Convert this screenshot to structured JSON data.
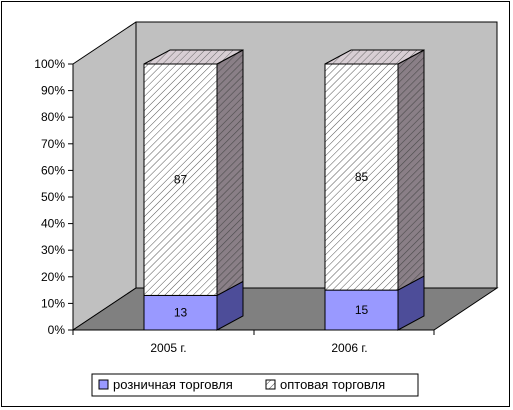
{
  "chart_data": {
    "type": "bar",
    "stacked": "percent",
    "categories": [
      "2005 г.",
      "2006 г."
    ],
    "series": [
      {
        "name": "розничная торговля",
        "values": [
          13,
          15
        ],
        "color": "#9999ff"
      },
      {
        "name": "оптовая торговля",
        "values": [
          87,
          85
        ],
        "color": "#ffffff",
        "pattern": "hatch"
      }
    ],
    "y_ticks": [
      "0%",
      "10%",
      "20%",
      "30%",
      "40%",
      "50%",
      "60%",
      "70%",
      "80%",
      "90%",
      "100%"
    ],
    "ylim": [
      0,
      100
    ],
    "grid": false,
    "legend_position": "bottom",
    "wall_color": "#c0c0c0",
    "floor_color": "#808080"
  }
}
